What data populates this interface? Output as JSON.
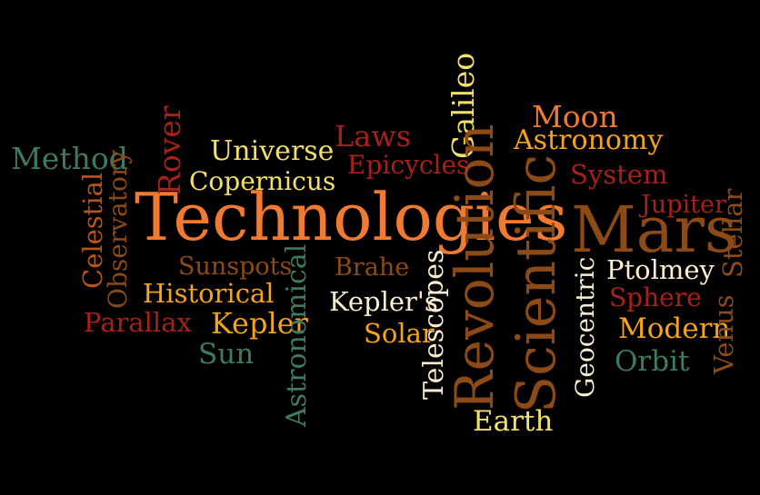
{
  "colors": {
    "background": "#000000",
    "orange": "#f07a32",
    "dark_orange": "#b85518",
    "red": "#a8201a",
    "brown": "#8c4a16",
    "gold": "#f4a31a",
    "yellow": "#f3e06a",
    "cream": "#fbeed0",
    "green": "#3e7a62"
  },
  "words": {
    "method": "Method",
    "celestial": "Celestial",
    "observatory": "Observatory",
    "rover": "Rover",
    "universe": "Universe",
    "copernicus": "Copernicus",
    "technologies": "Technologies",
    "laws": "Laws",
    "epicycles": "Epicycles",
    "galileo": "Galileo",
    "moon": "Moon",
    "astronomy": "Astronomy",
    "revolution": "Revolution",
    "scientific": "Scientific",
    "system": "System",
    "jupiter": "Jupiter",
    "mars": "Mars",
    "stellar": "Stellar",
    "sunspots": "Sunspots",
    "brahe": "Brahe",
    "astronomical": "Astronomical",
    "historical": "Historical",
    "keplers": "Kepler's",
    "telescopes": "Telescopes",
    "geocentric": "Geocentric",
    "ptolmey": "Ptolmey",
    "sphere": "Sphere",
    "venus": "Venus",
    "parallax": "Parallax",
    "kepler": "Kepler",
    "solar": "Solar",
    "modern": "Modern",
    "sun": "Sun",
    "orbit": "Orbit",
    "earth": "Earth"
  }
}
